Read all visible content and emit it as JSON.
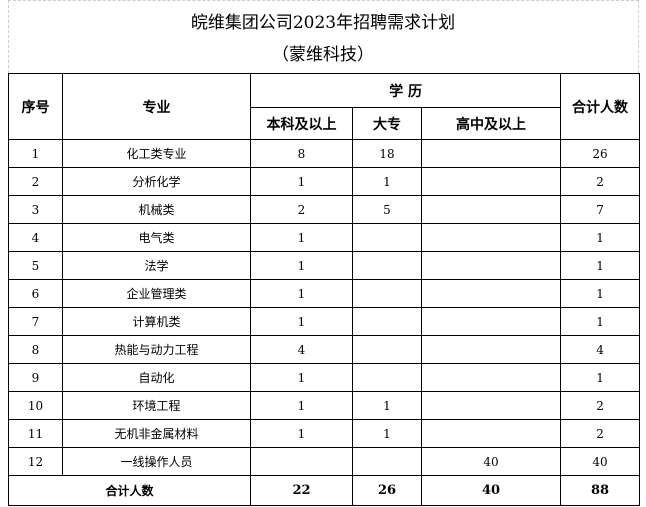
{
  "title": "皖维集团公司2023年招聘需求计划",
  "subtitle": "（蒙维科技）",
  "headers": {
    "seq": "序号",
    "major": "专业",
    "education": "学 历",
    "bachelor": "本科及以上",
    "college": "大专",
    "highschool": "高中及以上",
    "total": "合计人数"
  },
  "rows": [
    {
      "seq": "1",
      "major": "化工类专业",
      "bachelor": "8",
      "college": "18",
      "highschool": "",
      "total": "26"
    },
    {
      "seq": "2",
      "major": "分析化学",
      "bachelor": "1",
      "college": "1",
      "highschool": "",
      "total": "2"
    },
    {
      "seq": "3",
      "major": "机械类",
      "bachelor": "2",
      "college": "5",
      "highschool": "",
      "total": "7"
    },
    {
      "seq": "4",
      "major": "电气类",
      "bachelor": "1",
      "college": "",
      "highschool": "",
      "total": "1"
    },
    {
      "seq": "5",
      "major": "法学",
      "bachelor": "1",
      "college": "",
      "highschool": "",
      "total": "1"
    },
    {
      "seq": "6",
      "major": "企业管理类",
      "bachelor": "1",
      "college": "",
      "highschool": "",
      "total": "1"
    },
    {
      "seq": "7",
      "major": "计算机类",
      "bachelor": "1",
      "college": "",
      "highschool": "",
      "total": "1"
    },
    {
      "seq": "8",
      "major": "热能与动力工程",
      "bachelor": "4",
      "college": "",
      "highschool": "",
      "total": "4"
    },
    {
      "seq": "9",
      "major": "自动化",
      "bachelor": "1",
      "college": "",
      "highschool": "",
      "total": "1"
    },
    {
      "seq": "10",
      "major": "环境工程",
      "bachelor": "1",
      "college": "1",
      "highschool": "",
      "total": "2"
    },
    {
      "seq": "11",
      "major": "无机非金属材料",
      "bachelor": "1",
      "college": "1",
      "highschool": "",
      "total": "2"
    },
    {
      "seq": "12",
      "major": "一线操作人员",
      "bachelor": "",
      "college": "",
      "highschool": "40",
      "total": "40"
    }
  ],
  "totals": {
    "label": "合计人数",
    "bachelor": "22",
    "college": "26",
    "highschool": "40",
    "total": "88"
  }
}
